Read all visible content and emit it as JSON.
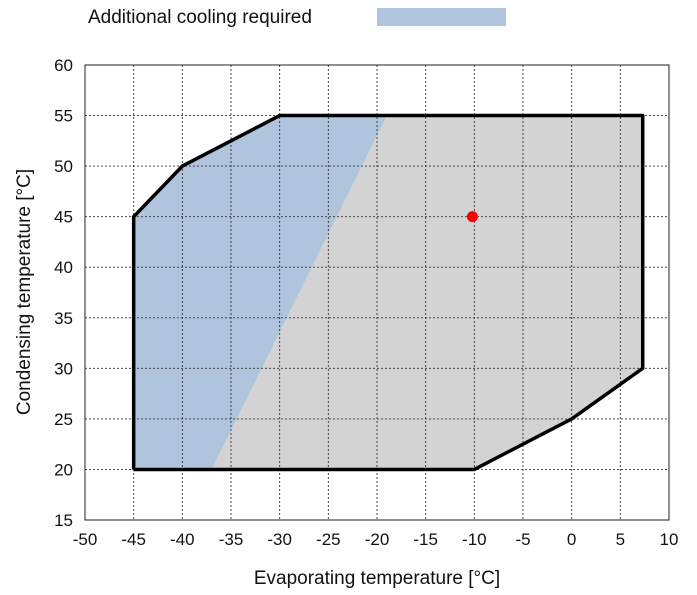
{
  "chart_data": {
    "type": "area",
    "title": "",
    "xlabel": "Evaporating temperature [°C]",
    "ylabel": "Condensing temperature [°C]",
    "xlim": [
      -50,
      10
    ],
    "ylim": [
      15,
      60
    ],
    "xticks": [
      -50,
      -45,
      -40,
      -35,
      -30,
      -25,
      -20,
      -15,
      -10,
      -5,
      0,
      5,
      10
    ],
    "yticks": [
      15,
      20,
      25,
      30,
      35,
      40,
      45,
      50,
      55,
      60
    ],
    "grid": true,
    "grid_style": "dashed",
    "legend": {
      "position": "top",
      "entries": [
        {
          "label": "Additional cooling required",
          "color": "#b0c4de"
        }
      ]
    },
    "envelope": {
      "fill": "#d3d3d3",
      "stroke": "#000000",
      "points": [
        [
          -45,
          20
        ],
        [
          -45,
          45
        ],
        [
          -40,
          50
        ],
        [
          -30,
          55
        ],
        [
          7.3,
          55
        ],
        [
          7.3,
          30
        ],
        [
          0,
          25
        ],
        [
          -10,
          20
        ],
        [
          -45,
          20
        ]
      ]
    },
    "additional_cooling_region": {
      "color": "#b0c4de",
      "points": [
        [
          -45,
          20
        ],
        [
          -45,
          45
        ],
        [
          -40,
          50
        ],
        [
          -30,
          55
        ],
        [
          -19,
          55
        ],
        [
          -37,
          20
        ]
      ]
    },
    "marker": {
      "x": -10.2,
      "y": 45,
      "color": "#ff0000"
    }
  }
}
